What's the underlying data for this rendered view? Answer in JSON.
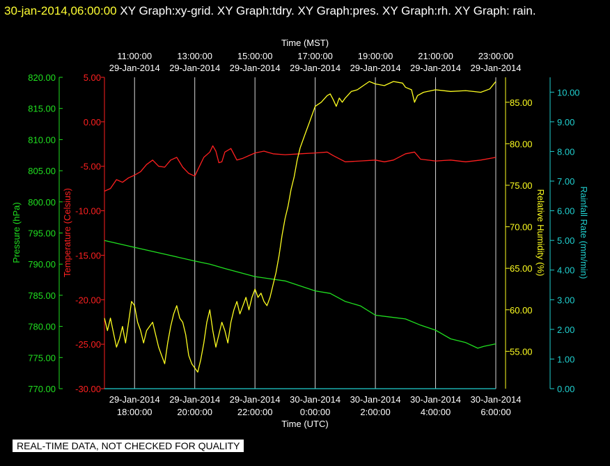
{
  "header": {
    "timestamp": "30-jan-2014,06:00:00",
    "title_rest": " XY Graph:xy-grid.  XY Graph:tdry.  XY Graph:pres.  XY Graph:rh.  XY Graph: rain."
  },
  "notice": "REAL-TIME DATA, NOT CHECKED FOR QUALITY",
  "colors": {
    "background": "#000000",
    "temperature": "#ff2020",
    "pressure": "#20e020",
    "humidity": "#ffff20",
    "rain": "#20d0d0",
    "grid": "#ffffff"
  },
  "chart_data": {
    "type": "line",
    "top_axis": {
      "label": "Time (MST)",
      "ticks": [
        [
          "11:00:00",
          "29-Jan-2014"
        ],
        [
          "13:00:00",
          "29-Jan-2014"
        ],
        [
          "15:00:00",
          "29-Jan-2014"
        ],
        [
          "17:00:00",
          "29-Jan-2014"
        ],
        [
          "19:00:00",
          "29-Jan-2014"
        ],
        [
          "21:00:00",
          "29-Jan-2014"
        ],
        [
          "23:00:00",
          "29-Jan-2014"
        ]
      ]
    },
    "bottom_axis": {
      "label": "Time (UTC)",
      "ticks": [
        [
          "29-Jan-2014",
          "18:00:00"
        ],
        [
          "29-Jan-2014",
          "20:00:00"
        ],
        [
          "29-Jan-2014",
          "22:00:00"
        ],
        [
          "30-Jan-2014",
          "0:00:00"
        ],
        [
          "30-Jan-2014",
          "2:00:00"
        ],
        [
          "30-Jan-2014",
          "4:00:00"
        ],
        [
          "30-Jan-2014",
          "6:00:00"
        ]
      ]
    },
    "x_hours_utc": [
      18,
      20,
      22,
      24,
      26,
      28,
      30
    ],
    "xlim_hours_utc": [
      17.0,
      30.0
    ],
    "axes": {
      "pressure": {
        "label": "Pressure (hPa)",
        "ylim": [
          770,
          820
        ],
        "ticks": [
          "770.00",
          "775.00",
          "780.00",
          "785.00",
          "790.00",
          "795.00",
          "800.00",
          "805.00",
          "810.00",
          "815.00",
          "820.00"
        ]
      },
      "temperature": {
        "label": "Temperature (Celsius)",
        "ylim": [
          -30,
          5
        ],
        "ticks": [
          "-30.00",
          "-25.00",
          "-20.00",
          "-15.00",
          "-10.00",
          "-5.00",
          "0.00",
          "5.00"
        ]
      },
      "humidity": {
        "label": "Relative Humidity (%)",
        "ylim": [
          50.5,
          88
        ],
        "ticks": [
          "55.00",
          "60.00",
          "65.00",
          "70.00",
          "75.00",
          "80.00",
          "85.00"
        ]
      },
      "rain": {
        "label": "Rainfall Rate (mm/min)",
        "ylim": [
          0,
          10.5
        ],
        "ticks": [
          "0.00",
          "1.00",
          "2.00",
          "3.00",
          "4.00",
          "5.00",
          "6.00",
          "7.00",
          "8.00",
          "9.00",
          "10.00"
        ]
      }
    },
    "series": [
      {
        "name": "tdry",
        "axis": "temperature",
        "points": [
          [
            17.0,
            -7.8
          ],
          [
            17.2,
            -7.5
          ],
          [
            17.4,
            -6.5
          ],
          [
            17.6,
            -6.8
          ],
          [
            17.8,
            -6.3
          ],
          [
            18.0,
            -6.0
          ],
          [
            18.2,
            -5.6
          ],
          [
            18.4,
            -4.8
          ],
          [
            18.6,
            -4.3
          ],
          [
            18.8,
            -5.0
          ],
          [
            19.0,
            -5.1
          ],
          [
            19.2,
            -4.3
          ],
          [
            19.4,
            -4.0
          ],
          [
            19.6,
            -5.1
          ],
          [
            19.8,
            -5.8
          ],
          [
            20.0,
            -6.1
          ],
          [
            20.1,
            -5.4
          ],
          [
            20.3,
            -4.0
          ],
          [
            20.5,
            -3.4
          ],
          [
            20.6,
            -2.7
          ],
          [
            20.7,
            -3.3
          ],
          [
            20.8,
            -4.6
          ],
          [
            20.9,
            -4.5
          ],
          [
            21.0,
            -3.4
          ],
          [
            21.2,
            -3.0
          ],
          [
            21.4,
            -4.3
          ],
          [
            21.6,
            -4.1
          ],
          [
            21.8,
            -3.8
          ],
          [
            22.0,
            -3.5
          ],
          [
            22.3,
            -3.3
          ],
          [
            22.6,
            -3.6
          ],
          [
            23.0,
            -3.7
          ],
          [
            23.5,
            -3.6
          ],
          [
            24.0,
            -3.5
          ],
          [
            24.4,
            -3.4
          ],
          [
            24.6,
            -3.8
          ],
          [
            25.0,
            -4.5
          ],
          [
            25.5,
            -4.4
          ],
          [
            26.0,
            -4.3
          ],
          [
            26.3,
            -4.5
          ],
          [
            26.6,
            -4.3
          ],
          [
            27.0,
            -3.6
          ],
          [
            27.3,
            -3.4
          ],
          [
            27.5,
            -4.2
          ],
          [
            28.0,
            -4.4
          ],
          [
            28.5,
            -4.3
          ],
          [
            29.0,
            -4.5
          ],
          [
            29.5,
            -4.3
          ],
          [
            30.0,
            -4.0
          ]
        ]
      },
      {
        "name": "pres",
        "axis": "pressure",
        "points": [
          [
            17.0,
            793.8
          ],
          [
            18.0,
            792.7
          ],
          [
            19.0,
            791.6
          ],
          [
            20.0,
            790.5
          ],
          [
            20.5,
            790.0
          ],
          [
            21.0,
            789.3
          ],
          [
            22.0,
            788.0
          ],
          [
            23.0,
            787.3
          ],
          [
            24.0,
            785.7
          ],
          [
            24.5,
            785.3
          ],
          [
            25.0,
            784.0
          ],
          [
            25.5,
            783.3
          ],
          [
            26.0,
            781.8
          ],
          [
            26.5,
            781.5
          ],
          [
            27.0,
            781.2
          ],
          [
            27.5,
            780.2
          ],
          [
            28.0,
            779.4
          ],
          [
            28.5,
            778.0
          ],
          [
            29.0,
            777.4
          ],
          [
            29.4,
            776.5
          ],
          [
            29.6,
            776.8
          ],
          [
            30.0,
            777.2
          ]
        ]
      },
      {
        "name": "rh",
        "axis": "humidity",
        "points": [
          [
            17.0,
            59.0
          ],
          [
            17.1,
            57.5
          ],
          [
            17.2,
            59.0
          ],
          [
            17.3,
            57.2
          ],
          [
            17.4,
            55.5
          ],
          [
            17.5,
            56.5
          ],
          [
            17.6,
            58.0
          ],
          [
            17.7,
            56.0
          ],
          [
            17.8,
            58.5
          ],
          [
            17.9,
            61.0
          ],
          [
            18.0,
            60.5
          ],
          [
            18.1,
            58.5
          ],
          [
            18.2,
            57.5
          ],
          [
            18.3,
            56.0
          ],
          [
            18.4,
            57.5
          ],
          [
            18.5,
            58.0
          ],
          [
            18.6,
            58.5
          ],
          [
            18.7,
            57.0
          ],
          [
            18.8,
            55.5
          ],
          [
            18.9,
            54.5
          ],
          [
            19.0,
            53.5
          ],
          [
            19.1,
            56.0
          ],
          [
            19.2,
            58.0
          ],
          [
            19.3,
            59.5
          ],
          [
            19.4,
            60.5
          ],
          [
            19.5,
            59.0
          ],
          [
            19.6,
            58.5
          ],
          [
            19.7,
            57.0
          ],
          [
            19.8,
            54.5
          ],
          [
            19.9,
            53.5
          ],
          [
            20.0,
            53.0
          ],
          [
            20.1,
            52.5
          ],
          [
            20.2,
            54.0
          ],
          [
            20.3,
            56.0
          ],
          [
            20.4,
            58.5
          ],
          [
            20.5,
            60.0
          ],
          [
            20.6,
            57.5
          ],
          [
            20.7,
            55.5
          ],
          [
            20.8,
            57.0
          ],
          [
            20.9,
            58.5
          ],
          [
            21.0,
            57.5
          ],
          [
            21.1,
            56.0
          ],
          [
            21.2,
            58.5
          ],
          [
            21.3,
            60.0
          ],
          [
            21.4,
            61.0
          ],
          [
            21.5,
            59.5
          ],
          [
            21.6,
            60.5
          ],
          [
            21.7,
            61.5
          ],
          [
            21.8,
            60.0
          ],
          [
            21.9,
            61.5
          ],
          [
            22.0,
            62.5
          ],
          [
            22.1,
            61.5
          ],
          [
            22.2,
            62.0
          ],
          [
            22.3,
            61.0
          ],
          [
            22.4,
            60.5
          ],
          [
            22.5,
            61.5
          ],
          [
            22.6,
            63.0
          ],
          [
            22.7,
            64.5
          ],
          [
            22.8,
            66.5
          ],
          [
            22.9,
            69.0
          ],
          [
            23.0,
            71.0
          ],
          [
            23.1,
            72.5
          ],
          [
            23.2,
            74.5
          ],
          [
            23.3,
            76.0
          ],
          [
            23.4,
            78.0
          ],
          [
            23.5,
            79.5
          ],
          [
            23.6,
            80.5
          ],
          [
            23.7,
            81.5
          ],
          [
            23.8,
            82.5
          ],
          [
            23.9,
            83.5
          ],
          [
            24.0,
            84.5
          ],
          [
            24.2,
            85.0
          ],
          [
            24.4,
            85.8
          ],
          [
            24.5,
            86.0
          ],
          [
            24.6,
            85.3
          ],
          [
            24.7,
            84.5
          ],
          [
            24.8,
            85.5
          ],
          [
            24.9,
            85.0
          ],
          [
            25.0,
            85.5
          ],
          [
            25.2,
            86.3
          ],
          [
            25.4,
            86.5
          ],
          [
            25.6,
            87.0
          ],
          [
            25.8,
            87.5
          ],
          [
            26.0,
            87.2
          ],
          [
            26.3,
            87.0
          ],
          [
            26.6,
            87.5
          ],
          [
            26.9,
            87.3
          ],
          [
            27.0,
            86.8
          ],
          [
            27.2,
            86.5
          ],
          [
            27.3,
            85.0
          ],
          [
            27.4,
            85.8
          ],
          [
            27.6,
            86.2
          ],
          [
            28.0,
            86.5
          ],
          [
            28.5,
            86.3
          ],
          [
            29.0,
            86.4
          ],
          [
            29.5,
            86.2
          ],
          [
            29.8,
            86.6
          ],
          [
            30.0,
            87.5
          ]
        ]
      },
      {
        "name": "rain",
        "axis": "rain",
        "points": [
          [
            17.0,
            0
          ],
          [
            30.0,
            0
          ]
        ]
      }
    ]
  }
}
